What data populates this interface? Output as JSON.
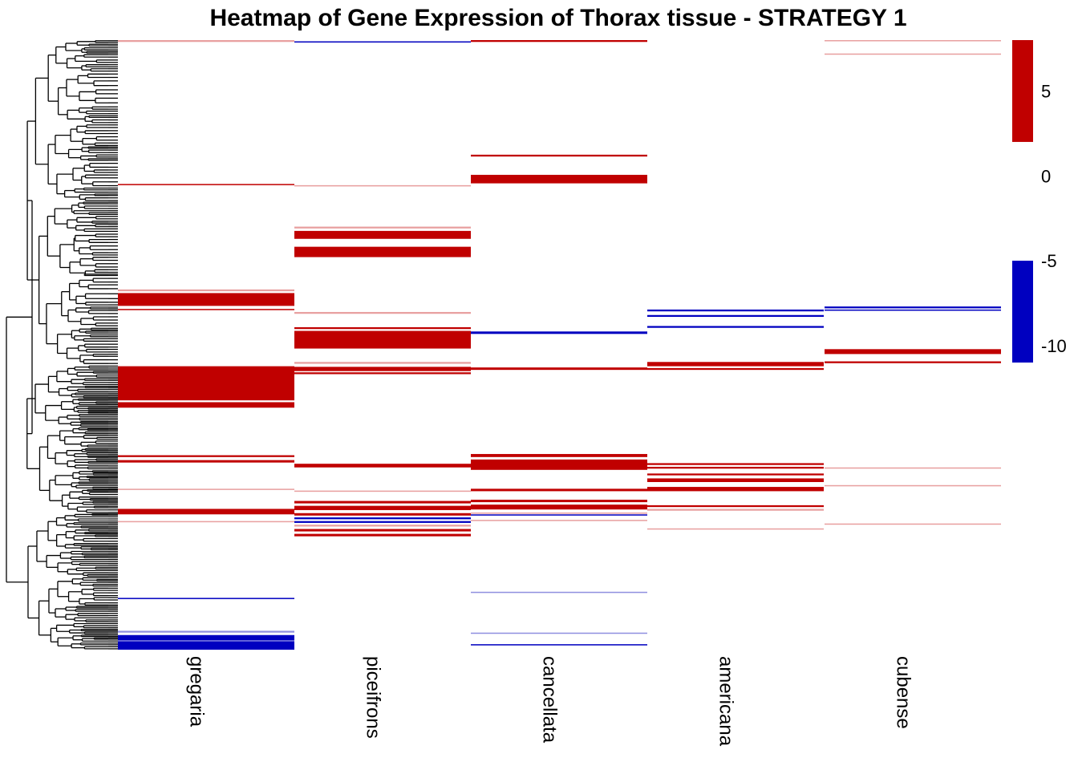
{
  "chart_data": {
    "type": "heatmap",
    "title": "Heatmap of Gene Expression of Thorax tissue - STRATEGY 1",
    "columns": [
      "gregaria",
      "piceifrons",
      "cancellata",
      "americana",
      "cubense"
    ],
    "row_range": [
      0,
      1
    ],
    "colors": {
      "high": "#c00000",
      "zero": "#ffffff",
      "low": "#0000c0",
      "faint_high": "#e8a0a0",
      "faint_low": "#9090e0"
    },
    "legend": {
      "ticks": [
        5,
        0,
        -5,
        -10
      ],
      "position": "right",
      "bands": [
        {
          "from": 2,
          "to": 8,
          "color": "#c00000"
        },
        {
          "from": -11,
          "to": -5,
          "color": "#0000c0"
        }
      ]
    },
    "dendrogram": {
      "position": "left",
      "shown": true
    },
    "bands": {
      "gregaria": [
        {
          "start": 0.0,
          "end": 0.003,
          "value": 3,
          "faint": true
        },
        {
          "start": 0.236,
          "end": 0.238,
          "value": 6
        },
        {
          "start": 0.409,
          "end": 0.412,
          "value": 3,
          "faint": true
        },
        {
          "start": 0.415,
          "end": 0.436,
          "value": 7
        },
        {
          "start": 0.441,
          "end": 0.443,
          "value": 6
        },
        {
          "start": 0.535,
          "end": 0.591,
          "value": 7
        },
        {
          "start": 0.594,
          "end": 0.603,
          "value": 7
        },
        {
          "start": 0.681,
          "end": 0.684,
          "value": 6
        },
        {
          "start": 0.689,
          "end": 0.693,
          "value": 5
        },
        {
          "start": 0.736,
          "end": 0.738,
          "value": 3,
          "faint": true
        },
        {
          "start": 0.769,
          "end": 0.778,
          "value": 7
        },
        {
          "start": 0.789,
          "end": 0.791,
          "value": 3,
          "faint": true
        },
        {
          "start": 0.915,
          "end": 0.917,
          "value": -8
        },
        {
          "start": 0.969,
          "end": 0.972,
          "value": -6,
          "faint": true
        },
        {
          "start": 0.976,
          "end": 0.985,
          "value": -9
        },
        {
          "start": 0.986,
          "end": 1.0,
          "value": -10
        }
      ],
      "piceifrons": [
        {
          "start": 0.002,
          "end": 0.004,
          "value": -6
        },
        {
          "start": 0.238,
          "end": 0.24,
          "value": 3,
          "faint": true
        },
        {
          "start": 0.306,
          "end": 0.309,
          "value": 3,
          "faint": true
        },
        {
          "start": 0.313,
          "end": 0.326,
          "value": 7
        },
        {
          "start": 0.339,
          "end": 0.356,
          "value": 7
        },
        {
          "start": 0.446,
          "end": 0.449,
          "value": 3,
          "faint": true
        },
        {
          "start": 0.471,
          "end": 0.474,
          "value": 5
        },
        {
          "start": 0.477,
          "end": 0.506,
          "value": 7
        },
        {
          "start": 0.528,
          "end": 0.531,
          "value": 3,
          "faint": true
        },
        {
          "start": 0.536,
          "end": 0.543,
          "value": 6
        },
        {
          "start": 0.545,
          "end": 0.548,
          "value": 5
        },
        {
          "start": 0.695,
          "end": 0.701,
          "value": 7
        },
        {
          "start": 0.739,
          "end": 0.741,
          "value": 3,
          "faint": true
        },
        {
          "start": 0.756,
          "end": 0.76,
          "value": 6
        },
        {
          "start": 0.764,
          "end": 0.771,
          "value": 7
        },
        {
          "start": 0.776,
          "end": 0.78,
          "value": 5
        },
        {
          "start": 0.783,
          "end": 0.786,
          "value": -8
        },
        {
          "start": 0.789,
          "end": 0.792,
          "value": -7
        },
        {
          "start": 0.795,
          "end": 0.798,
          "value": 3,
          "faint": true
        },
        {
          "start": 0.802,
          "end": 0.806,
          "value": 6
        },
        {
          "start": 0.81,
          "end": 0.814,
          "value": 6
        }
      ],
      "cancellata": [
        {
          "start": 0.0,
          "end": 0.003,
          "value": 6
        },
        {
          "start": 0.188,
          "end": 0.191,
          "value": 5
        },
        {
          "start": 0.221,
          "end": 0.235,
          "value": 7
        },
        {
          "start": 0.478,
          "end": 0.482,
          "value": -9
        },
        {
          "start": 0.537,
          "end": 0.541,
          "value": 5
        },
        {
          "start": 0.679,
          "end": 0.684,
          "value": 5
        },
        {
          "start": 0.688,
          "end": 0.705,
          "value": 7
        },
        {
          "start": 0.736,
          "end": 0.74,
          "value": 5
        },
        {
          "start": 0.754,
          "end": 0.758,
          "value": 5
        },
        {
          "start": 0.762,
          "end": 0.77,
          "value": 7
        },
        {
          "start": 0.775,
          "end": 0.777,
          "value": 3,
          "faint": true
        },
        {
          "start": 0.778,
          "end": 0.78,
          "value": -7
        },
        {
          "start": 0.787,
          "end": 0.789,
          "value": 3,
          "faint": true
        },
        {
          "start": 0.905,
          "end": 0.907,
          "value": -6,
          "faint": true
        },
        {
          "start": 0.972,
          "end": 0.974,
          "value": -6,
          "faint": true
        },
        {
          "start": 0.991,
          "end": 0.993,
          "value": -8
        }
      ],
      "americana": [
        {
          "start": 0.442,
          "end": 0.445,
          "value": -8
        },
        {
          "start": 0.451,
          "end": 0.454,
          "value": -6
        },
        {
          "start": 0.469,
          "end": 0.472,
          "value": -8
        },
        {
          "start": 0.528,
          "end": 0.535,
          "value": 7
        },
        {
          "start": 0.538,
          "end": 0.541,
          "value": 5
        },
        {
          "start": 0.694,
          "end": 0.697,
          "value": 5
        },
        {
          "start": 0.7,
          "end": 0.703,
          "value": 5
        },
        {
          "start": 0.711,
          "end": 0.714,
          "value": 5
        },
        {
          "start": 0.719,
          "end": 0.725,
          "value": 6
        },
        {
          "start": 0.733,
          "end": 0.74,
          "value": 7
        },
        {
          "start": 0.763,
          "end": 0.766,
          "value": 5
        },
        {
          "start": 0.769,
          "end": 0.772,
          "value": 3,
          "faint": true
        },
        {
          "start": 0.801,
          "end": 0.803,
          "value": 3,
          "faint": true
        }
      ],
      "cubense": [
        {
          "start": 0.0,
          "end": 0.002,
          "value": 2,
          "faint": true
        },
        {
          "start": 0.022,
          "end": 0.024,
          "value": 3,
          "faint": true
        },
        {
          "start": 0.437,
          "end": 0.44,
          "value": -8
        },
        {
          "start": 0.442,
          "end": 0.444,
          "value": -6
        },
        {
          "start": 0.507,
          "end": 0.515,
          "value": 7
        },
        {
          "start": 0.527,
          "end": 0.53,
          "value": 5
        },
        {
          "start": 0.701,
          "end": 0.703,
          "value": 3,
          "faint": true
        },
        {
          "start": 0.73,
          "end": 0.732,
          "value": 3,
          "faint": true
        },
        {
          "start": 0.793,
          "end": 0.795,
          "value": 2,
          "faint": true
        }
      ]
    }
  }
}
